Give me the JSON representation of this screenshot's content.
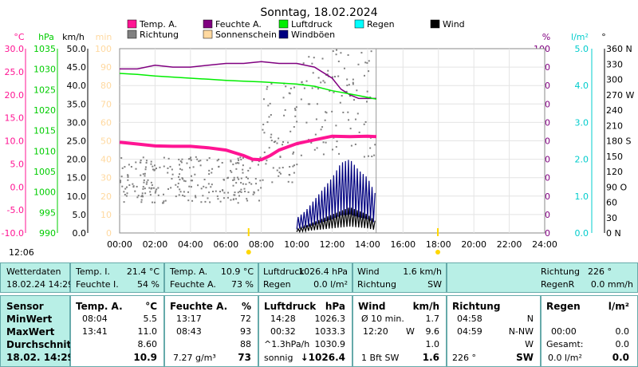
{
  "chart_data": {
    "type": "line",
    "title": "Sonntag, 18.02.2024",
    "x_ticks": [
      "00:00",
      "02:00",
      "04:00",
      "06:00",
      "08:00",
      "10:00",
      "12:00",
      "14:00",
      "16:00",
      "18:00",
      "20:00",
      "22:00",
      "24:00"
    ],
    "axes": [
      {
        "unit": "°C",
        "ticks": [
          "30.0",
          "25.0",
          "20.0",
          "15.0",
          "10.0",
          "5.0",
          "0.0",
          "-5.0",
          "-10.0"
        ],
        "color": "#ff1493"
      },
      {
        "unit": "hPa",
        "ticks": [
          "1035",
          "1030",
          "1025",
          "1020",
          "1015",
          "1010",
          "1005",
          "1000",
          "995",
          "990"
        ],
        "color": "#00cc00"
      },
      {
        "unit": "km/h",
        "ticks": [
          "50.0",
          "45.0",
          "40.0",
          "35.0",
          "30.0",
          "25.0",
          "20.0",
          "15.0",
          "10.0",
          "5.0",
          "0.0"
        ],
        "color": "#000000"
      },
      {
        "unit": "min",
        "ticks": [
          "100",
          "90",
          "80",
          "70",
          "60",
          "50",
          "40",
          "30",
          "20",
          "10",
          "0"
        ],
        "color": "#ffd9a0"
      },
      {
        "unit": "%",
        "ticks": [
          "100",
          "90",
          "80",
          "70",
          "60",
          "50",
          "40",
          "30",
          "20",
          "10",
          "0"
        ],
        "color": "#800080"
      },
      {
        "unit": "l/m²",
        "ticks": [
          "5.0",
          "4.0",
          "3.0",
          "2.0",
          "1.0",
          "0.0"
        ],
        "color": "#00cccc"
      },
      {
        "unit": "°",
        "ticks": [
          "360 N",
          "330",
          "300",
          "270 W",
          "240",
          "210",
          "180 S",
          "150",
          "120",
          "90 O",
          "60",
          "30",
          "0 N"
        ],
        "color": "#000000"
      }
    ],
    "legend": [
      {
        "name": "Temp. A.",
        "color": "#ff1493"
      },
      {
        "name": "Feuchte A.",
        "color": "#800080"
      },
      {
        "name": "Luftdruck",
        "color": "#00ee00"
      },
      {
        "name": "Regen",
        "color": "#00ffff"
      },
      {
        "name": "Wind",
        "color": "#000000"
      },
      {
        "name": "Richtung",
        "color": "#808080"
      },
      {
        "name": "Sonnenschein",
        "color": "#ffd9a0"
      },
      {
        "name": "Windböen",
        "color": "#000080"
      }
    ],
    "series": [
      {
        "name": "Temp. A.",
        "unit": "°C",
        "x": [
          0,
          1,
          2,
          3,
          4,
          5,
          6,
          7,
          7.5,
          8,
          8.5,
          9,
          10,
          11,
          12,
          13,
          14,
          14.5
        ],
        "values": [
          9.7,
          9.3,
          8.9,
          8.8,
          8.8,
          8.5,
          8.0,
          6.8,
          6.0,
          5.9,
          6.8,
          8.0,
          9.4,
          10.2,
          11.0,
          10.9,
          11.0,
          10.9
        ]
      },
      {
        "name": "Feuchte A.",
        "unit": "%",
        "x": [
          0,
          1,
          2,
          3,
          4,
          5,
          6,
          7,
          8,
          9,
          10,
          11,
          12,
          12.5,
          13,
          13.5,
          14,
          14.5
        ],
        "values": [
          89,
          89,
          91,
          90,
          90,
          91,
          92,
          92,
          93,
          92,
          92,
          90,
          84,
          78,
          75,
          73,
          73,
          73
        ]
      },
      {
        "name": "Luftdruck",
        "unit": "hPa",
        "x": [
          0,
          1,
          2,
          3,
          4,
          5,
          6,
          7,
          8,
          9,
          10,
          11,
          12,
          13,
          14,
          14.5
        ],
        "values": [
          1033.3,
          1033.0,
          1032.6,
          1032.3,
          1032.0,
          1031.7,
          1031.4,
          1031.2,
          1031.0,
          1030.7,
          1030.4,
          1029.8,
          1028.6,
          1027.7,
          1026.8,
          1026.3
        ]
      },
      {
        "name": "Windböen",
        "unit": "km/h",
        "x": [
          10,
          10.5,
          11,
          11.5,
          12,
          12.5,
          13,
          13.5,
          14,
          14.5
        ],
        "values": [
          4,
          6,
          9,
          12,
          15,
          19,
          20,
          17,
          15,
          10
        ]
      },
      {
        "name": "Wind",
        "unit": "km/h",
        "x": [
          10,
          10.5,
          11,
          11.5,
          12,
          12.5,
          13,
          13.5,
          14,
          14.5
        ],
        "values": [
          1,
          2,
          3,
          4,
          5,
          6,
          7,
          6,
          5,
          3
        ]
      }
    ],
    "now_marker": "14:29",
    "sun_marks": {
      "sunrise": "07:17",
      "sunset": "17:58"
    },
    "time_label": "12:06"
  },
  "summary": {
    "row1": {
      "label": "Wetterdaten",
      "datetime": "18.02.24 14:29",
      "temp_i_label": "Temp. I.",
      "temp_i": "21.4 °C",
      "feuchte_i_label": "Feuchte I.",
      "feuchte_i": "54 %",
      "temp_a_label": "Temp. A.",
      "temp_a": "10.9 °C",
      "feuchte_a_label": "Feuchte A.",
      "feuchte_a": "73 %",
      "luftdruck_label": "Luftdruck",
      "luftdruck": "1026.4 hPa",
      "regen_label": "Regen",
      "regen": "0.0 l/m²",
      "wind_label": "Wind",
      "wind": "1.6 km/h",
      "richtung_label": "Richtung",
      "richtung": "SW",
      "richtung2_label": "Richtung",
      "richtung2": "226 °",
      "regenr_label": "RegenR",
      "regenr": "0.0 mm/h"
    },
    "stats": {
      "sensor": {
        "title": "Sensor",
        "rows": [
          "MinWert",
          "MaxWert",
          "Durchschnitt",
          "18.02. 14:29"
        ]
      },
      "temp": {
        "title": "Temp. A.",
        "unit": "°C",
        "times": [
          "08:04",
          "13:41",
          "",
          ""
        ],
        "values": [
          "5.5",
          "11.0",
          "8.60",
          "10.9"
        ]
      },
      "feuchte": {
        "title": "Feuchte A.",
        "unit": "%",
        "times": [
          "13:17",
          "08:43",
          "",
          "7.27 g/m³"
        ],
        "values": [
          "72",
          "93",
          "88",
          "73"
        ]
      },
      "luftdruck": {
        "title": "Luftdruck",
        "unit": "hPa",
        "times": [
          "14:28",
          "00:32",
          "^1.3hPa/h",
          "sonnig"
        ],
        "values": [
          "1026.3",
          "1033.3",
          "1030.9",
          "↓1026.4"
        ]
      },
      "wind": {
        "title": "Wind",
        "unit": "km/h",
        "times": [
          "Ø 10 min.",
          "12:20",
          "",
          "1 Bft SW"
        ],
        "mids": [
          "",
          "W",
          "",
          ""
        ],
        "values": [
          "1.7",
          "9.6",
          "1.0",
          "1.6"
        ]
      },
      "richtung": {
        "title": "Richtung",
        "times": [
          "04:58",
          "04:59",
          "",
          "226 °"
        ],
        "values": [
          "N",
          "N-NW",
          "W",
          "SW"
        ]
      },
      "regen": {
        "title": "Regen",
        "unit": "l/m²",
        "times": [
          "",
          "00:00",
          "Gesamt:",
          "0.0 l/m²"
        ],
        "values": [
          "",
          "0.0",
          "0.0",
          "0.0"
        ]
      }
    }
  }
}
